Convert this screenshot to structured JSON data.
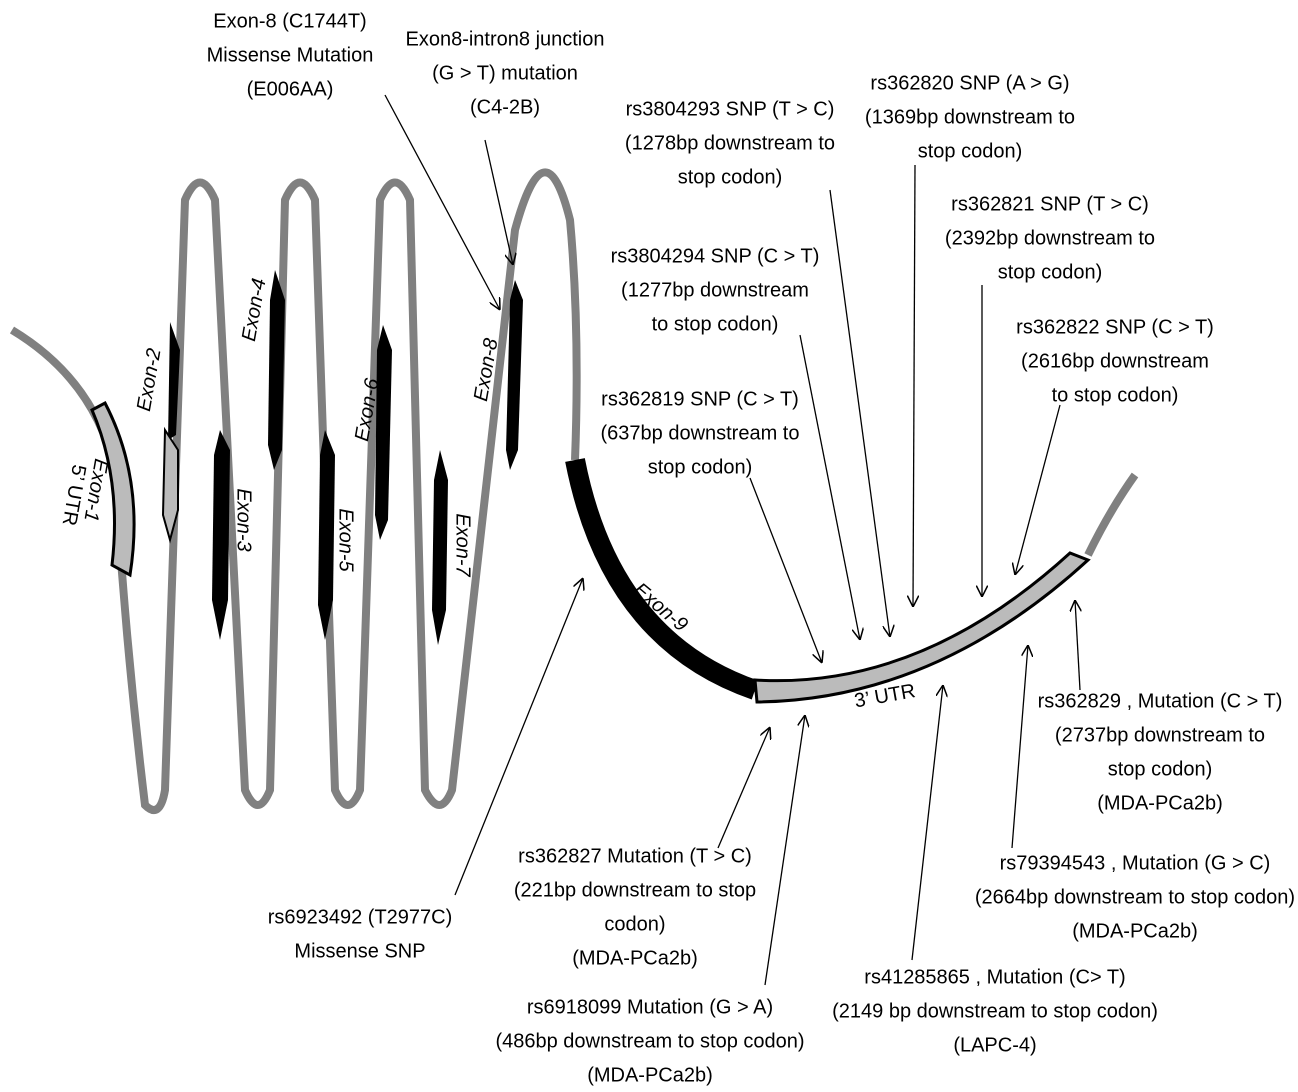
{
  "exons": [
    {
      "label": "Exon-1",
      "sublabel": "5’ UTR"
    },
    {
      "label": "Exon-2"
    },
    {
      "label": "Exon-3"
    },
    {
      "label": "Exon-4"
    },
    {
      "label": "Exon-5"
    },
    {
      "label": "Exon-6"
    },
    {
      "label": "Exon-7"
    },
    {
      "label": "Exon-8"
    },
    {
      "label": "Exon-9"
    },
    {
      "label": "3’ UTR"
    }
  ],
  "annotations": [
    {
      "lines": [
        "Exon-8 (C1744T)",
        "Missense Mutation",
        "(E006AA)"
      ]
    },
    {
      "lines": [
        "Exon8-intron8 junction",
        "(G > T) mutation",
        "(C4-2B)"
      ]
    },
    {
      "lines": [
        "rs3804293 SNP (T > C)",
        "(1278bp downstream  to",
        "stop codon)"
      ]
    },
    {
      "lines": [
        "rs362820 SNP (A > G)",
        "(1369bp downstream  to",
        "stop codon)"
      ]
    },
    {
      "lines": [
        "rs362821 SNP (T > C)",
        "(2392bp downstream  to",
        "stop codon)"
      ]
    },
    {
      "lines": [
        "rs3804294 SNP (C > T)",
        "(1277bp downstream",
        "to stop codon)"
      ]
    },
    {
      "lines": [
        "rs362822 SNP (C > T)",
        "(2616bp downstream",
        "to stop codon)"
      ]
    },
    {
      "lines": [
        "rs362819 SNP (C > T)",
        "(637bp downstream  to",
        "stop codon)"
      ]
    },
    {
      "lines": [
        "rs362829 , Mutation (C > T)",
        "(2737bp downstream  to",
        "stop codon)",
        "(MDA-PCa2b)"
      ]
    },
    {
      "lines": [
        "rs79394543 , Mutation (G > C)",
        "(2664bp downstream  to stop codon)",
        "(MDA-PCa2b)"
      ]
    },
    {
      "lines": [
        "rs41285865 , Mutation (C> T)",
        "(2149 bp downstream  to stop codon)",
        "(LAPC-4)"
      ]
    },
    {
      "lines": [
        "rs362827 Mutation (T > C)",
        "(221bp downstream to stop",
        "codon)",
        "(MDA-PCa2b)"
      ]
    },
    {
      "lines": [
        "rs6918099  Mutation (G > A)",
        "(486bp downstream  to stop codon)",
        "(MDA-PCa2b)"
      ]
    },
    {
      "lines": [
        "rs6923492  (T2977C)",
        "Missense SNP"
      ]
    }
  ]
}
